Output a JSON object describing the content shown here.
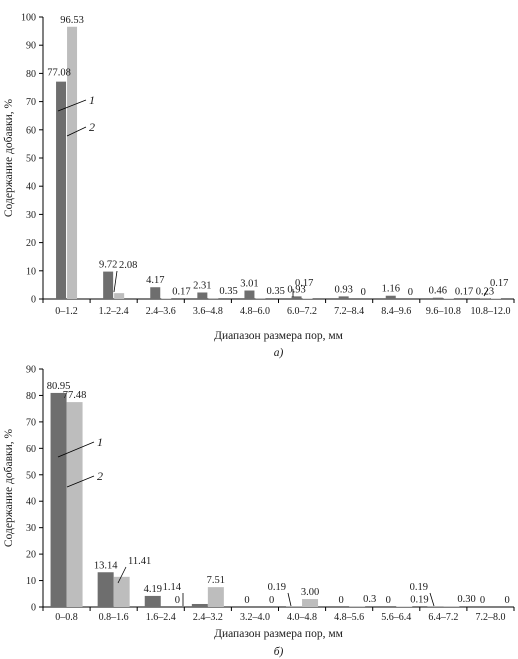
{
  "chart_data": [
    {
      "type": "bar",
      "panel_label": "а)",
      "xlabel": "Диапазон размера пор, мм",
      "ylabel": "Содержание добавки, %",
      "ylim": [
        0,
        100
      ],
      "yticks": [
        0,
        10,
        20,
        30,
        40,
        50,
        60,
        70,
        80,
        90,
        100
      ],
      "categories": [
        "0–1.2",
        "1.2–2.4",
        "2.4–3.6",
        "3.6–4.8",
        "4.8–6.0",
        "6.0–7.2",
        "7.2–8.4",
        "8.4–9.6",
        "9.6–10.8",
        "10.8–12.0"
      ],
      "series": [
        {
          "name": "1",
          "color": "#6e6e6e",
          "values": [
            77.08,
            9.72,
            4.17,
            2.31,
            3.01,
            0.93,
            0.93,
            1.16,
            0.46,
            0.23
          ],
          "labels": [
            "77.08",
            "9.72",
            "4.17",
            "2.31",
            "3.01",
            "0.93",
            "0.93",
            "1.16",
            "0.46",
            "0.23"
          ]
        },
        {
          "name": "2",
          "color": "#bdbdbd",
          "values": [
            96.53,
            2.08,
            0.17,
            0.35,
            0.35,
            0.17,
            0,
            0,
            0.17,
            0.17
          ],
          "labels": [
            "96.53",
            "2.08",
            "0.17",
            "0.35",
            "0.35",
            "0.17",
            "0",
            "0",
            "0.17",
            "0.17"
          ]
        }
      ],
      "grid": false,
      "legend": "in-plot series markers 1 and 2"
    },
    {
      "type": "bar",
      "panel_label": "б)",
      "xlabel": "Диапазон размера пор, мм",
      "ylabel": "Содержание добавки, %",
      "ylim": [
        0,
        90
      ],
      "yticks": [
        0,
        10,
        20,
        30,
        40,
        50,
        60,
        70,
        80,
        90
      ],
      "categories": [
        "0–0.8",
        "0.8–1.6",
        "1.6–2.4",
        "2.4–3.2",
        "3.2–4.0",
        "4.0–4.8",
        "4.8–5.6",
        "5.6–6.4",
        "6.4–7.2",
        "7.2–8.0"
      ],
      "series": [
        {
          "name": "1",
          "color": "#6e6e6e",
          "values": [
            80.95,
            13.14,
            4.19,
            1.14,
            0,
            0.19,
            0,
            0,
            0.19,
            0
          ],
          "labels": [
            "80.95",
            "13.14",
            "4.19",
            "1.14",
            "0",
            "0.19",
            "0",
            "0",
            "0.19",
            "0"
          ]
        },
        {
          "name": "2",
          "color": "#bdbdbd",
          "values": [
            77.48,
            11.41,
            0,
            7.51,
            0,
            3.0,
            0.3,
            0.19,
            0.3,
            0
          ],
          "labels": [
            "77.48",
            "11.41",
            "0",
            "7.51",
            "0",
            "3.00",
            "0.3",
            "0.19",
            "0.30",
            "0"
          ]
        }
      ],
      "grid": false,
      "legend": "in-plot series markers 1 and 2"
    }
  ]
}
